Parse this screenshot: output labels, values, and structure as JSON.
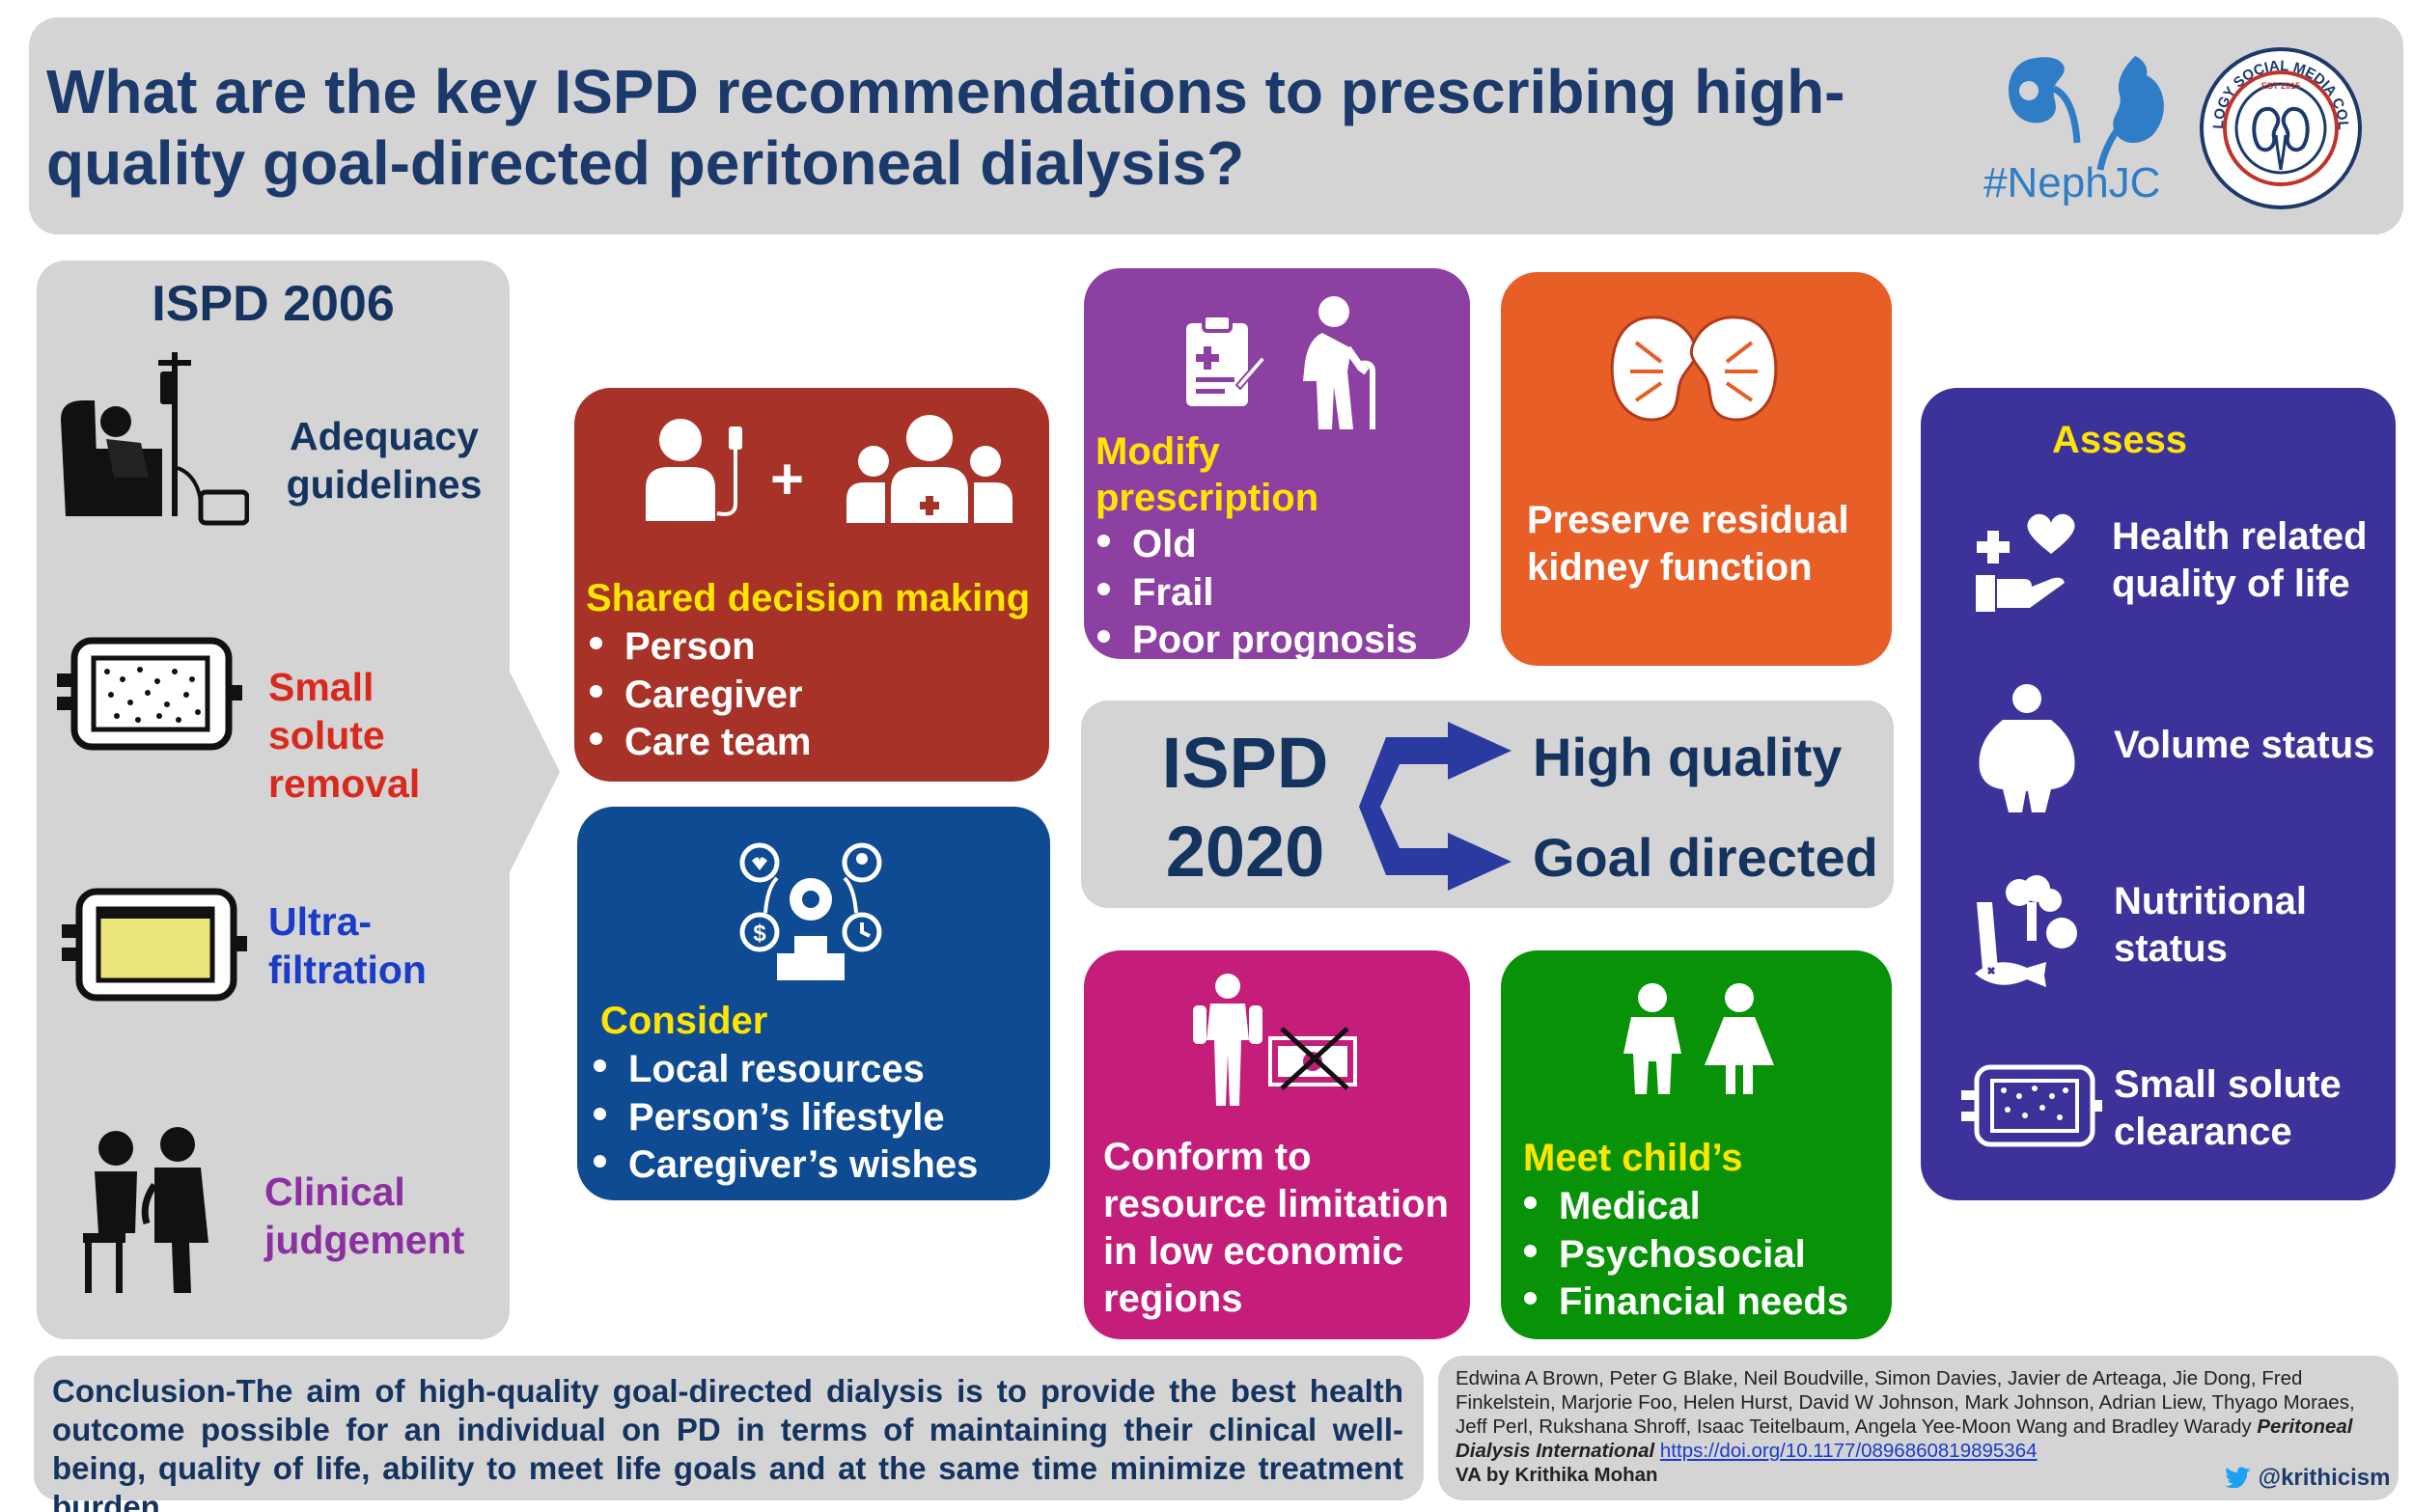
{
  "header": {
    "title": "What are the key ISPD recommendations to prescribing high-quality goal-directed peritoneal dialysis?",
    "hashtag": "#NephJC",
    "seal_text": "NEPHROLOGY SOCIAL MEDIA COLLECTIVE",
    "seal_est": "EST 2015"
  },
  "ispd2006": {
    "title": "ISPD 2006",
    "items": [
      {
        "label": "Adequacy guidelines",
        "icon": "dialysis-chair-icon",
        "color": "#14335f"
      },
      {
        "label": "Small solute removal",
        "icon": "solute-bag-icon",
        "color": "#d9291c"
      },
      {
        "label": "Ultra-filtration",
        "icon": "fluid-bag-icon",
        "color": "#1a3cc8"
      },
      {
        "label": "Clinical judgement",
        "icon": "doctor-patient-icon",
        "color": "#8c2fa0"
      }
    ]
  },
  "shared": {
    "heading": "Shared decision making",
    "items": [
      "Person",
      "Caregiver",
      "Care team"
    ]
  },
  "consider": {
    "heading": "Consider",
    "items": [
      "Local resources",
      "Person’s lifestyle",
      "Caregiver’s wishes"
    ]
  },
  "modify": {
    "heading": "Modify prescription",
    "items": [
      "Old",
      "Frail",
      "Poor prognosis"
    ]
  },
  "preserve": {
    "text": "Preserve residual kidney function"
  },
  "center": {
    "label_line1": "ISPD",
    "label_line2": "2020",
    "top": "High quality",
    "bottom": "Goal directed"
  },
  "conform": {
    "text": "Conform to resource limitation in low economic regions"
  },
  "child": {
    "heading": "Meet child’s",
    "items": [
      "Medical",
      "Psychosocial",
      "Financial needs"
    ]
  },
  "assess": {
    "heading": "Assess",
    "items": [
      {
        "label": "Health related quality of life",
        "icon": "health-quality-icon"
      },
      {
        "label": "Volume status",
        "icon": "body-volume-icon"
      },
      {
        "label": "Nutritional status",
        "icon": "nutrition-icon"
      },
      {
        "label": "Small solute clearance",
        "icon": "solute-clearance-icon"
      }
    ]
  },
  "conclusion": "Conclusion-The aim of high-quality goal-directed dialysis is to provide the best health outcome possible for an individual on PD in terms of maintaining their clinical well-being, quality of life, ability to meet life goals and at the same time minimize treatment burden.",
  "reference": {
    "authors": "Edwina A Brown, Peter G Blake, Neil Boudville, Simon Davies, Javier de Arteaga, Jie Dong, Fred Finkelstein, Marjorie Foo, Helen Hurst, David W Johnson, Mark Johnson, Adrian Liew, Thyago Moraes, Jeff Perl, Rukshana Shroff, Isaac Teitelbaum, Angela Yee-Moon Wang and Bradley Warady",
    "journal": "Peritoneal Dialysis International",
    "doi": "https://doi.org/10.1177/0896860819895364",
    "va": "VA by Krithika Mohan",
    "twitter": "@krithicism"
  },
  "colors": {
    "navy": "#14335f",
    "gray": "#d5d4d5",
    "red": "#a73227",
    "blue": "#0e4b92",
    "purple": "#8c41a2",
    "orange": "#e75f26",
    "magenta": "#c41d7a",
    "green": "#079207",
    "indigo": "#3c339a",
    "yellow": "#ffe500"
  }
}
